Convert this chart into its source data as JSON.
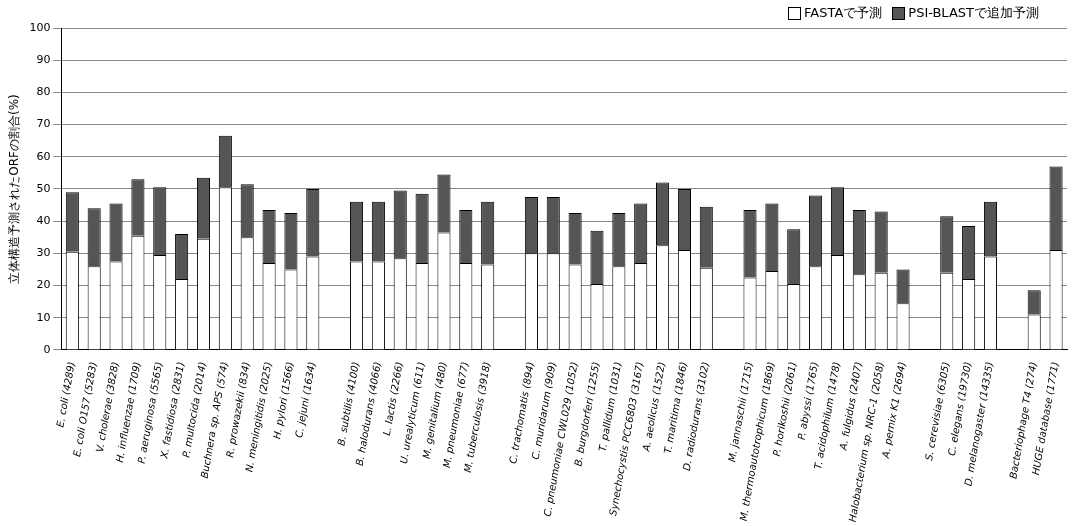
{
  "chart_data": {
    "type": "bar",
    "stacked": true,
    "ylabel": "立体構造予測されたORFの割合(%)",
    "categories": [
      "E. coli (4289)",
      "E. coli O157 (5283)",
      "V. cholerae (3828)",
      "H. influenzae (1709)",
      "P. aeruginosa (5565)",
      "X. fastidiosa (2831)",
      "P. multocida (2014)",
      "Buchnera sp. APS (574)",
      "R. prowazekii (834)",
      "N. meningitidis (2025)",
      "H. pylori (1566)",
      "C. jejuni (1634)",
      null,
      "B. subtilis (4100)",
      "B. halodurans (4066)",
      "L. lactis (2266)",
      "U. urealyticum (611)",
      "M. genitalium (480)",
      "M. pneumoniae (677)",
      "M. tuberculosis (3918)",
      null,
      "C. trachomatis (894)",
      "C. muridarum (909)",
      "C. pneumoniae CWL029 (1052)",
      "B. burgdorferi (1255)",
      "T. pallidum (1031)",
      "Synechocystis PCC6803 (3167)",
      "A. aeolicus (1522)",
      "T. maritima (1846)",
      "D. radiodurans (3102)",
      null,
      "M. jannaschii (1715)",
      "M. thermoautotrophicum (1869)",
      "P. horikoshii (2061)",
      "P. abyssi (1765)",
      "T. acidophilum (1478)",
      "A. fulgidus (2407)",
      "Halobacterium sp. NRC-1 (2058)",
      "A. pernix K1 (2694)",
      null,
      "S. cerevisiae (6305)",
      "C. elegans (19730)",
      "D. melanogaster (14335)",
      null,
      "Bacteriophage T4 (274)",
      "HUGE database (1771)"
    ],
    "series": [
      {
        "name": "FASTAで予測",
        "color": "#ffffff",
        "values": [
          30.5,
          26,
          27.5,
          35.5,
          29.5,
          22,
          34.5,
          50.5,
          35,
          27,
          25,
          29,
          null,
          27.5,
          27.5,
          28.5,
          27,
          36.5,
          27,
          26.5,
          null,
          30,
          30,
          26.5,
          20.5,
          26,
          27,
          32.5,
          31,
          25.5,
          null,
          22.5,
          24.5,
          20.5,
          26,
          29.5,
          23.5,
          24,
          14.5,
          null,
          24,
          22,
          29,
          null,
          11,
          31
        ]
      },
      {
        "name": "PSI-BLASTで追加予測",
        "color": "#555555",
        "values": [
          18.5,
          18,
          18,
          17.5,
          21,
          14,
          19,
          16,
          16.5,
          16.5,
          17.5,
          21,
          null,
          18.5,
          18.5,
          21,
          21.5,
          18,
          16.5,
          19.5,
          null,
          17.5,
          17.5,
          16,
          16.5,
          16.5,
          18.5,
          19.5,
          19,
          19,
          null,
          21,
          21,
          17,
          22,
          21,
          20,
          19,
          10.5,
          null,
          17.5,
          16.5,
          17,
          null,
          7.5,
          26
        ]
      }
    ],
    "ylim": [
      0,
      100
    ],
    "yticks": [
      0,
      10,
      20,
      30,
      40,
      50,
      60,
      70,
      80,
      90,
      100
    ],
    "grid": "y",
    "legend": "top right"
  }
}
